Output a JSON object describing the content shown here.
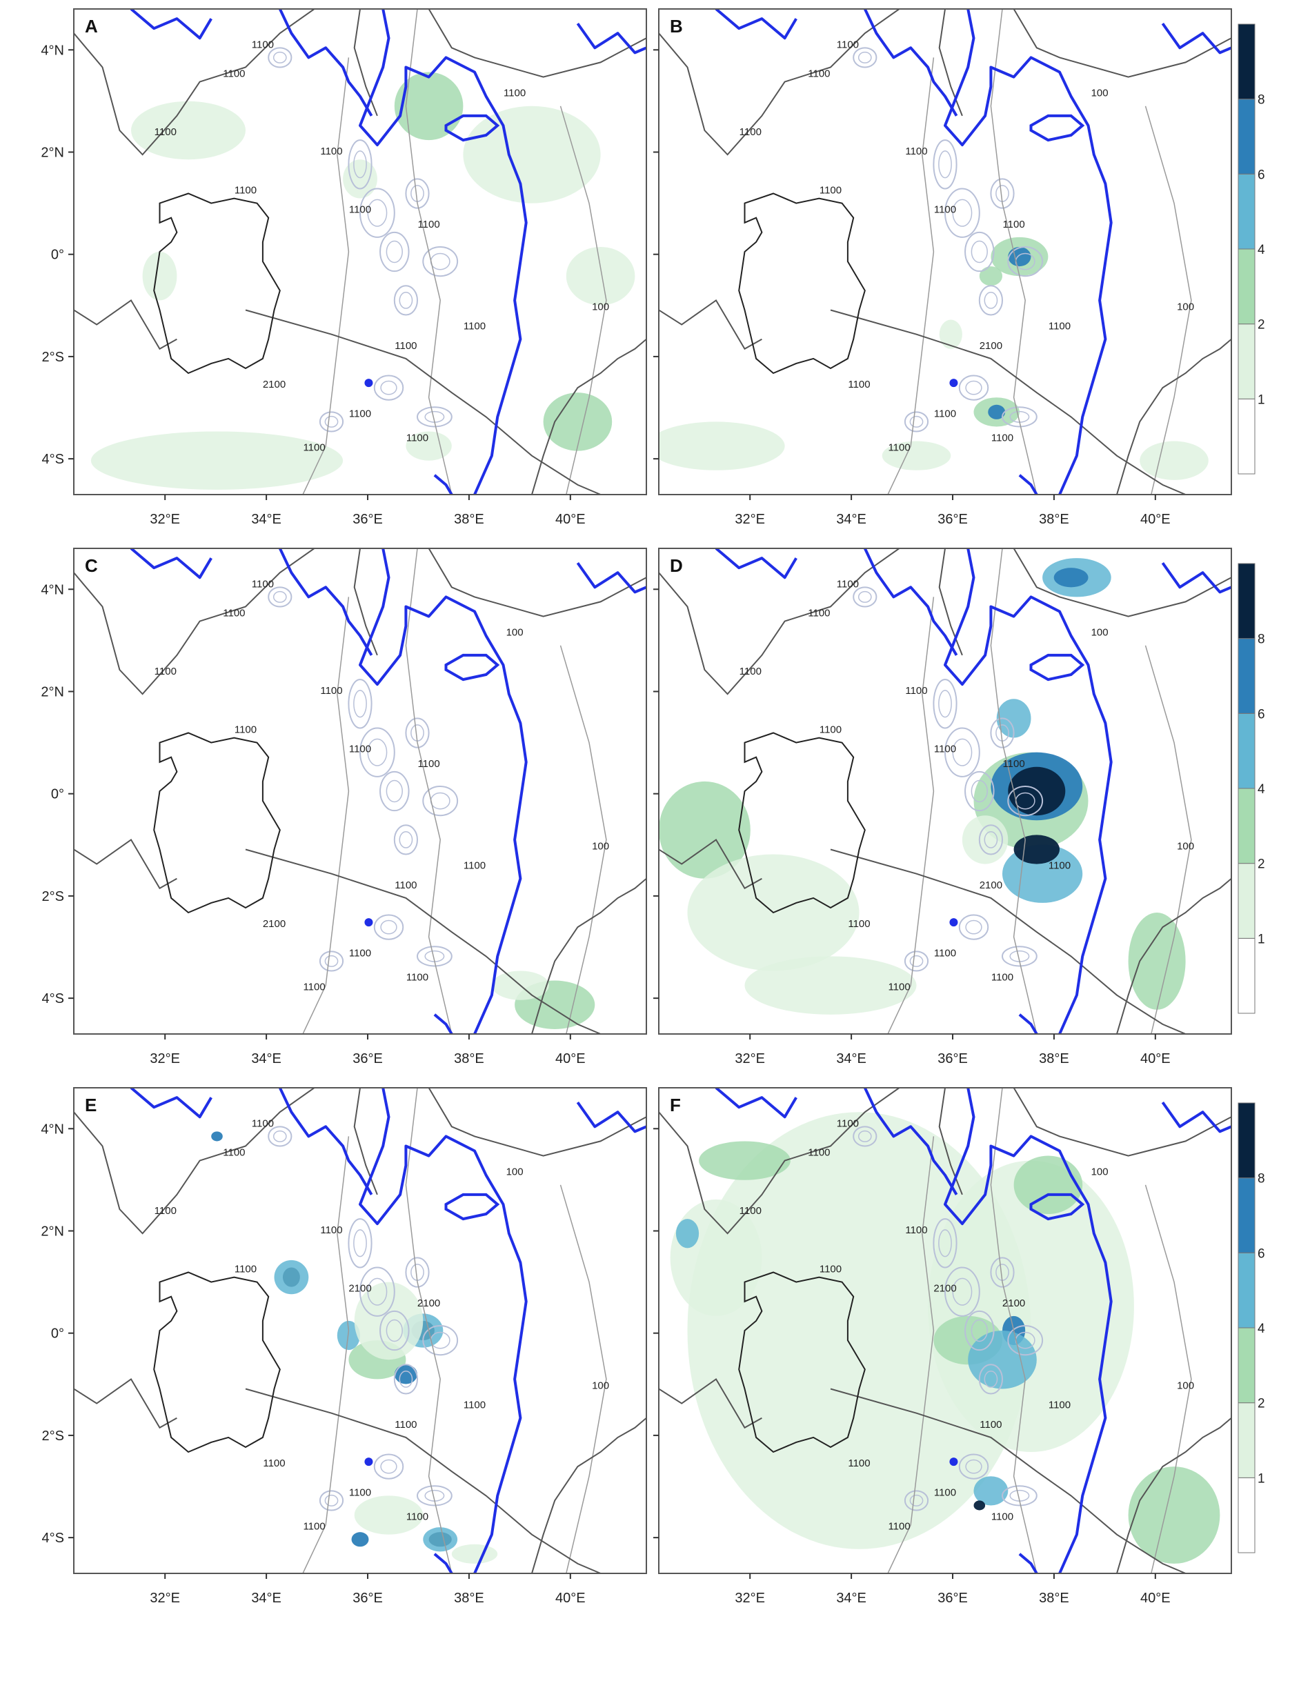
{
  "colors": {
    "frame": "#555555",
    "river": "#1f2ee6",
    "land_contour": "#555555",
    "topo_contour": "#b8c0d8",
    "precip_1_2": "#dff2e0",
    "precip_2_4": "#a6dbb0",
    "precip_4_6": "#62b6d3",
    "precip_6_8": "#2d7fb8",
    "precip_8_plus": "#08233f"
  },
  "x_ticks": [
    "32°E",
    "34°E",
    "36°E",
    "38°E",
    "40°E"
  ],
  "y_ticks": [
    "4°N",
    "2°N",
    "0°",
    "2°S",
    "4°S"
  ],
  "colorbar_ticks": [
    "1",
    "2",
    "4",
    "6",
    "8"
  ],
  "panels": [
    {
      "label": "A",
      "contour_labels": [
        "1100",
        "1100",
        "1100",
        "1100",
        "1100",
        "1100",
        "1100",
        "2100",
        "1100",
        "1100",
        "1100",
        "1100",
        "1100",
        "1100",
        "100"
      ]
    },
    {
      "label": "B",
      "contour_labels": [
        "1100",
        "1100",
        "1100",
        "1100",
        "1100",
        "1100",
        "1100",
        "1100",
        "2100",
        "1100",
        "1100",
        "1100",
        "1100",
        "100",
        "100"
      ]
    },
    {
      "label": "C",
      "contour_labels": [
        "1100",
        "1100",
        "1100",
        "1100",
        "1100",
        "1100",
        "1100",
        "2100",
        "1100",
        "1100",
        "1100",
        "1100",
        "1100",
        "100",
        "100"
      ]
    },
    {
      "label": "D",
      "contour_labels": [
        "1100",
        "1100",
        "1100",
        "1100",
        "1100",
        "1100",
        "1100",
        "1100",
        "2100",
        "1100",
        "1100",
        "1100",
        "1100",
        "100",
        "100"
      ]
    },
    {
      "label": "E",
      "contour_labels": [
        "1100",
        "1100",
        "1100",
        "1100",
        "1100",
        "2100",
        "2100",
        "1100",
        "1100",
        "1100",
        "1100",
        "1100",
        "1100",
        "100",
        "100"
      ]
    },
    {
      "label": "F",
      "contour_labels": [
        "1100",
        "1100",
        "1100",
        "1100",
        "1100",
        "2100",
        "2100",
        "1100",
        "1100",
        "1100",
        "1100",
        "1100",
        "1100",
        "100",
        "100"
      ]
    }
  ]
}
